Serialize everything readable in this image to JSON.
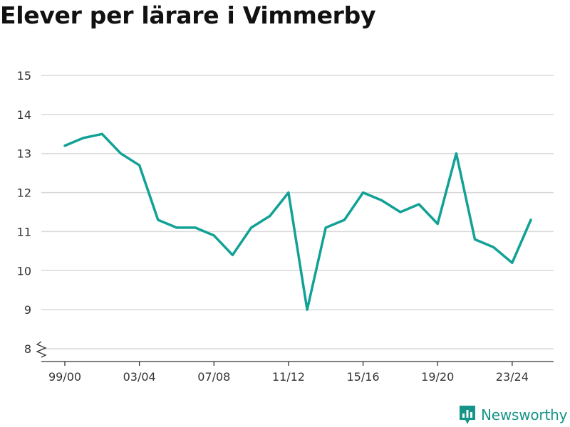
{
  "title": "Elever per lärare i Vimmerby",
  "brand": {
    "name": "Newsworthy",
    "color": "#159488"
  },
  "chart_data": {
    "type": "line",
    "title": "Elever per lärare i Vimmerby",
    "xlabel": "",
    "ylabel": "",
    "x": [
      "99/00",
      "00/01",
      "01/02",
      "02/03",
      "03/04",
      "04/05",
      "05/06",
      "06/07",
      "07/08",
      "08/09",
      "09/10",
      "10/11",
      "11/12",
      "12/13",
      "13/14",
      "14/15",
      "15/16",
      "16/17",
      "17/18",
      "18/19",
      "19/20",
      "20/21",
      "21/22",
      "22/23",
      "23/24",
      "24/25"
    ],
    "xticks": [
      "99/00",
      "03/04",
      "07/08",
      "11/12",
      "15/16",
      "19/20",
      "23/24"
    ],
    "ylim": [
      8,
      15
    ],
    "yticks": [
      8,
      9,
      10,
      11,
      12,
      13,
      14,
      15
    ],
    "y_axis_break": true,
    "grid": true,
    "series": [
      {
        "color": "#12a195",
        "values": [
          13.2,
          13.4,
          13.5,
          13.0,
          12.7,
          11.3,
          11.1,
          11.1,
          10.9,
          10.4,
          11.1,
          11.4,
          12.0,
          9.0,
          11.1,
          11.3,
          12.0,
          11.8,
          11.5,
          11.7,
          11.2,
          13.0,
          10.8,
          10.6,
          10.2,
          11.3
        ]
      }
    ]
  }
}
